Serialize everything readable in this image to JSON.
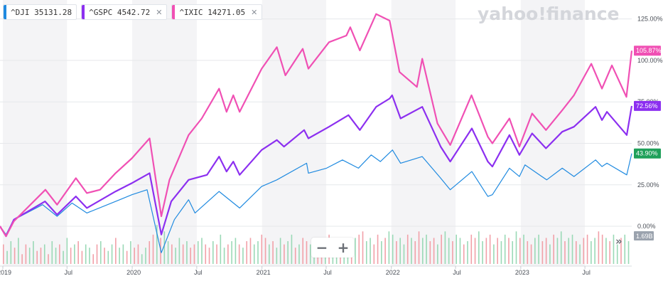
{
  "legend": [
    {
      "symbol": "^DJI",
      "value": "35131.28",
      "color": "#1f8ae0",
      "has_close": false
    },
    {
      "symbol": "^GSPC",
      "value": "4542.72",
      "color": "#8c2ff0",
      "has_close": true
    },
    {
      "symbol": "^IXIC",
      "value": "14271.05",
      "color": "#f050b4",
      "has_close": true
    }
  ],
  "watermark": "yahoo!finance",
  "zoom": {
    "minus": "−",
    "plus": "+"
  },
  "expand": "»",
  "chart_data": {
    "type": "line",
    "y_unit": "% change",
    "ylim": [
      -12,
      133
    ],
    "x_range": [
      "2018-12-24",
      "2023-11-10"
    ],
    "y_ticks": [
      {
        "value": 0,
        "label": "0.00%"
      },
      {
        "value": 25,
        "label": "25.00%"
      },
      {
        "value": 50,
        "label": "50.00%"
      },
      {
        "value": 75,
        "label": "75.00%"
      },
      {
        "value": 100,
        "label": "100.00%"
      },
      {
        "value": 125,
        "label": "125.00%"
      }
    ],
    "x_ticks": [
      {
        "date": "2019-01-01",
        "label": "2019"
      },
      {
        "date": "2019-07-01",
        "label": "Jul"
      },
      {
        "date": "2020-01-01",
        "label": "2020"
      },
      {
        "date": "2020-07-01",
        "label": "Jul"
      },
      {
        "date": "2021-01-01",
        "label": "2021"
      },
      {
        "date": "2021-07-01",
        "label": "Jul"
      },
      {
        "date": "2022-01-01",
        "label": "2022"
      },
      {
        "date": "2022-07-01",
        "label": "Jul"
      },
      {
        "date": "2023-01-01",
        "label": "2023"
      },
      {
        "date": "2023-07-01",
        "label": "Jul"
      }
    ],
    "grid": true,
    "series": [
      {
        "name": "^IXIC",
        "color": "#f050b4",
        "end_label": "105.87%",
        "end_value": 105.87,
        "points": [
          [
            "2018-12-24",
            0
          ],
          [
            "2019-01-10",
            -6
          ],
          [
            "2019-02-01",
            3
          ],
          [
            "2019-03-15",
            12
          ],
          [
            "2019-05-01",
            22
          ],
          [
            "2019-06-03",
            13
          ],
          [
            "2019-07-26",
            29
          ],
          [
            "2019-08-26",
            20
          ],
          [
            "2019-10-02",
            22
          ],
          [
            "2019-11-15",
            32
          ],
          [
            "2019-12-31",
            41
          ],
          [
            "2020-02-19",
            53
          ],
          [
            "2020-03-23",
            6
          ],
          [
            "2020-04-15",
            28
          ],
          [
            "2020-06-08",
            55
          ],
          [
            "2020-07-15",
            65
          ],
          [
            "2020-09-02",
            83
          ],
          [
            "2020-09-23",
            69
          ],
          [
            "2020-10-12",
            79
          ],
          [
            "2020-10-30",
            69
          ],
          [
            "2020-12-31",
            95
          ],
          [
            "2021-02-12",
            108
          ],
          [
            "2021-03-08",
            91
          ],
          [
            "2021-04-26",
            107
          ],
          [
            "2021-05-12",
            95
          ],
          [
            "2021-07-09",
            111
          ],
          [
            "2021-08-27",
            115
          ],
          [
            "2021-09-07",
            120
          ],
          [
            "2021-10-04",
            106
          ],
          [
            "2021-11-19",
            128
          ],
          [
            "2021-12-27",
            124
          ],
          [
            "2022-01-24",
            93
          ],
          [
            "2022-03-14",
            84
          ],
          [
            "2022-03-29",
            101
          ],
          [
            "2022-05-11",
            62
          ],
          [
            "2022-06-16",
            49
          ],
          [
            "2022-08-15",
            79
          ],
          [
            "2022-09-30",
            54
          ],
          [
            "2022-10-13",
            50
          ],
          [
            "2022-11-30",
            65
          ],
          [
            "2022-12-28",
            48
          ],
          [
            "2023-02-02",
            68
          ],
          [
            "2023-03-13",
            58
          ],
          [
            "2023-04-28",
            70
          ],
          [
            "2023-05-31",
            79
          ],
          [
            "2023-07-19",
            98
          ],
          [
            "2023-08-18",
            83
          ],
          [
            "2023-09-15",
            97
          ],
          [
            "2023-10-26",
            78
          ],
          [
            "2023-11-10",
            105.87
          ]
        ]
      },
      {
        "name": "^GSPC",
        "color": "#8c2ff0",
        "end_label": "72.56%",
        "end_value": 72.56,
        "points": [
          [
            "2018-12-24",
            0
          ],
          [
            "2019-01-10",
            -6
          ],
          [
            "2019-02-01",
            4
          ],
          [
            "2019-04-30",
            15
          ],
          [
            "2019-06-03",
            7
          ],
          [
            "2019-07-26",
            18
          ],
          [
            "2019-08-26",
            11
          ],
          [
            "2019-11-15",
            21
          ],
          [
            "2019-12-31",
            26
          ],
          [
            "2020-02-19",
            32
          ],
          [
            "2020-03-23",
            -5
          ],
          [
            "2020-04-20",
            15
          ],
          [
            "2020-06-08",
            28
          ],
          [
            "2020-07-30",
            31
          ],
          [
            "2020-09-02",
            42
          ],
          [
            "2020-09-23",
            33
          ],
          [
            "2020-10-12",
            39
          ],
          [
            "2020-10-30",
            31
          ],
          [
            "2020-12-31",
            46
          ],
          [
            "2021-02-12",
            52
          ],
          [
            "2021-03-04",
            48
          ],
          [
            "2021-04-30",
            58
          ],
          [
            "2021-05-12",
            53
          ],
          [
            "2021-07-09",
            60
          ],
          [
            "2021-09-02",
            67
          ],
          [
            "2021-10-04",
            58
          ],
          [
            "2021-11-19",
            72
          ],
          [
            "2021-12-27",
            77
          ],
          [
            "2022-01-03",
            79
          ],
          [
            "2022-01-27",
            65
          ],
          [
            "2022-03-29",
            72
          ],
          [
            "2022-05-20",
            48
          ],
          [
            "2022-06-16",
            39
          ],
          [
            "2022-08-16",
            59
          ],
          [
            "2022-09-30",
            39
          ],
          [
            "2022-10-13",
            36
          ],
          [
            "2022-11-30",
            55
          ],
          [
            "2022-12-28",
            43
          ],
          [
            "2023-02-02",
            56
          ],
          [
            "2023-03-13",
            47
          ],
          [
            "2023-04-28",
            57
          ],
          [
            "2023-05-31",
            60
          ],
          [
            "2023-07-31",
            72
          ],
          [
            "2023-08-18",
            64
          ],
          [
            "2023-09-01",
            69
          ],
          [
            "2023-10-27",
            55
          ],
          [
            "2023-11-10",
            72.56
          ]
        ]
      },
      {
        "name": "^DJI",
        "color": "#1f8ae0",
        "end_label": "43.90%",
        "end_value": 43.9,
        "points": [
          [
            "2018-12-24",
            0
          ],
          [
            "2019-01-10",
            -5
          ],
          [
            "2019-02-01",
            4
          ],
          [
            "2019-04-23",
            13
          ],
          [
            "2019-06-03",
            6
          ],
          [
            "2019-07-15",
            14
          ],
          [
            "2019-08-26",
            8
          ],
          [
            "2019-11-27",
            16
          ],
          [
            "2019-12-31",
            19
          ],
          [
            "2020-02-12",
            22
          ],
          [
            "2020-03-23",
            -16
          ],
          [
            "2020-04-29",
            4
          ],
          [
            "2020-06-08",
            16
          ],
          [
            "2020-06-26",
            8
          ],
          [
            "2020-09-02",
            21
          ],
          [
            "2020-10-30",
            11
          ],
          [
            "2020-12-31",
            24
          ],
          [
            "2021-02-12",
            28
          ],
          [
            "2021-05-07",
            38
          ],
          [
            "2021-05-12",
            32
          ],
          [
            "2021-07-02",
            35
          ],
          [
            "2021-08-16",
            40
          ],
          [
            "2021-09-30",
            35
          ],
          [
            "2021-11-05",
            43
          ],
          [
            "2021-12-01",
            39
          ],
          [
            "2022-01-04",
            46
          ],
          [
            "2022-01-27",
            38
          ],
          [
            "2022-03-29",
            42
          ],
          [
            "2022-05-20",
            29
          ],
          [
            "2022-06-16",
            22
          ],
          [
            "2022-08-16",
            33
          ],
          [
            "2022-09-30",
            18
          ],
          [
            "2022-10-13",
            19
          ],
          [
            "2022-11-30",
            35
          ],
          [
            "2022-12-28",
            30
          ],
          [
            "2023-01-13",
            37
          ],
          [
            "2023-03-15",
            28
          ],
          [
            "2023-04-28",
            35
          ],
          [
            "2023-05-31",
            30
          ],
          [
            "2023-07-31",
            40
          ],
          [
            "2023-08-18",
            36
          ],
          [
            "2023-09-01",
            38
          ],
          [
            "2023-10-27",
            31
          ],
          [
            "2023-11-10",
            43.9
          ]
        ]
      }
    ],
    "volume": {
      "label": "1.69B",
      "bars": [
        6,
        4,
        7,
        5,
        8,
        3,
        6,
        5,
        7,
        4,
        5,
        6,
        3,
        7,
        5,
        6,
        4,
        8,
        5,
        6,
        7,
        4,
        6,
        5,
        3,
        6,
        7,
        5,
        4,
        6,
        8,
        5,
        6,
        4,
        7,
        5,
        6,
        3,
        5,
        7,
        9,
        12,
        8,
        10,
        7,
        6,
        5,
        8,
        6,
        7,
        5,
        6,
        7,
        8,
        6,
        5,
        7,
        6,
        9,
        5,
        6,
        7,
        8,
        6,
        5,
        7,
        8,
        6,
        7,
        9,
        8,
        6,
        7,
        5,
        8,
        6,
        7,
        9,
        5,
        6,
        8,
        7,
        6,
        5,
        7,
        8,
        6,
        9,
        7,
        6,
        8,
        5,
        7,
        6,
        8,
        9,
        10,
        7,
        8,
        6,
        9,
        7,
        8,
        10,
        9,
        7,
        8,
        6,
        9,
        8,
        7,
        10,
        8,
        9,
        7,
        8,
        6,
        9,
        10,
        8,
        7,
        9,
        8,
        6,
        7,
        9,
        8,
        10,
        7,
        8,
        9,
        6,
        8,
        7,
        9,
        8,
        7,
        10,
        8,
        9,
        7,
        6,
        8,
        9,
        7,
        8,
        6,
        9,
        8,
        10,
        7,
        8,
        9,
        7,
        6,
        8,
        9,
        7,
        8,
        10,
        9,
        8,
        7,
        9,
        6,
        8,
        9,
        7
      ]
    }
  }
}
